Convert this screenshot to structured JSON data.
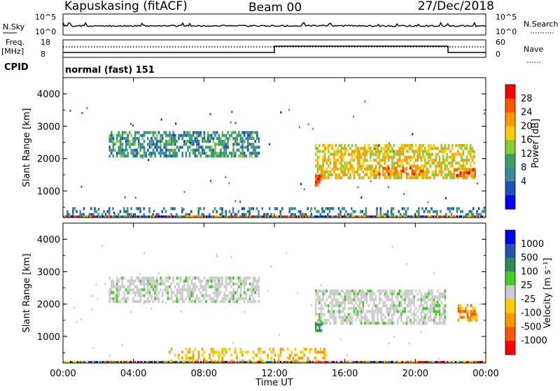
{
  "header": {
    "station": "Kapuskasing (fitACF)",
    "beam": "Beam 00",
    "date": "27/Dec/2018"
  },
  "status_panel": {
    "nsky_label": "N.Sky",
    "nsky_ticks": [
      "10^5",
      "10^0"
    ],
    "nsearch_label": "N.Search",
    "nsearch_ticks": [
      "10^5",
      "10^0"
    ],
    "freq_label": "Freq.",
    "freq_unit": "[MHz]",
    "freq_ticks": [
      "18",
      "8"
    ],
    "nave_label": "Nave",
    "nave_ticks": [
      "60",
      "0"
    ],
    "cpid_label": "CPID",
    "cpid_value": "normal (fast) 151"
  },
  "colors": {
    "power_scale": [
      "#0000ff",
      "#2050c0",
      "#3a8a9a",
      "#3aa060",
      "#88cc33",
      "#ffcc00",
      "#ff9900",
      "#ff5500",
      "#ff0000"
    ],
    "velocity_scale": [
      "#0000ff",
      "#2255aa",
      "#2e8b57",
      "#44cc22",
      "#cccccc",
      "#ffcc00",
      "#ff9900",
      "#ff5500",
      "#ff0000"
    ],
    "ground_scatter": "#cccccc"
  },
  "chart_data": [
    {
      "type": "heatmap",
      "parameter": "Power",
      "ylabel": "Slant Range [km]",
      "xlabel": "Time UT",
      "xlim": [
        "00:00",
        "24:00"
      ],
      "ylim": [
        180,
        4500
      ],
      "x_ticks": [
        "00:00",
        "04:00",
        "08:00",
        "12:00",
        "16:00",
        "20:00",
        "00:00"
      ],
      "y_ticks": [
        "4000",
        "3000",
        "2000",
        "1000"
      ],
      "colorbar": {
        "label": "Power [dB]",
        "range": [
          0,
          30
        ],
        "ticks": [
          "28",
          "24",
          "20",
          "16",
          "12",
          "8",
          "4"
        ]
      },
      "regions": [
        {
          "t_start": 2.6,
          "t_end": 11.2,
          "range_from": 2000,
          "range_to": 2850,
          "level": 2.5
        },
        {
          "t_start": 14.3,
          "t_end": 23.4,
          "range_from": 1300,
          "range_to": 2450,
          "level": 5
        },
        {
          "t_start": 14.3,
          "t_end": 14.8,
          "range_from": 1100,
          "range_to": 1500,
          "level": 7
        },
        {
          "t_start": 17.5,
          "t_end": 20.5,
          "range_from": 1400,
          "range_to": 1750,
          "level": 6.5
        },
        {
          "t_start": 22.2,
          "t_end": 23.5,
          "range_from": 1400,
          "range_to": 1700,
          "level": 6.5
        },
        {
          "t_start": 0.0,
          "t_end": 24.0,
          "range_from": 180,
          "range_to": 500,
          "level": 2
        }
      ]
    },
    {
      "type": "heatmap",
      "parameter": "Velocity",
      "ylabel": "Slant Range [km]",
      "xlabel": "Time UT",
      "xlim": [
        "00:00",
        "24:00"
      ],
      "ylim": [
        180,
        4500
      ],
      "x_ticks": [
        "00:00",
        "04:00",
        "08:00",
        "12:00",
        "16:00",
        "20:00",
        "00:00"
      ],
      "y_ticks": [
        "4000",
        "3000",
        "2000",
        "1000"
      ],
      "colorbar": {
        "label": "Velocity [m s⁻¹]",
        "range": [
          -1000,
          1000
        ],
        "ticks": [
          "1000",
          "500",
          "100",
          "25",
          "-25",
          "-100",
          "-500",
          "-1000"
        ]
      },
      "regions": [
        {
          "t_start": 2.6,
          "t_end": 11.2,
          "range_from": 2000,
          "range_to": 2850,
          "velocity": 0
        },
        {
          "t_start": 14.3,
          "t_end": 21.8,
          "range_from": 1300,
          "range_to": 2450,
          "velocity": 0
        },
        {
          "t_start": 14.3,
          "t_end": 14.8,
          "range_from": 1100,
          "range_to": 1500,
          "velocity": 80
        },
        {
          "t_start": 22.4,
          "t_end": 23.6,
          "range_from": 1400,
          "range_to": 2000,
          "velocity": -200
        },
        {
          "t_start": 6.0,
          "t_end": 15.0,
          "range_from": 180,
          "range_to": 650,
          "velocity": -60
        }
      ]
    }
  ]
}
